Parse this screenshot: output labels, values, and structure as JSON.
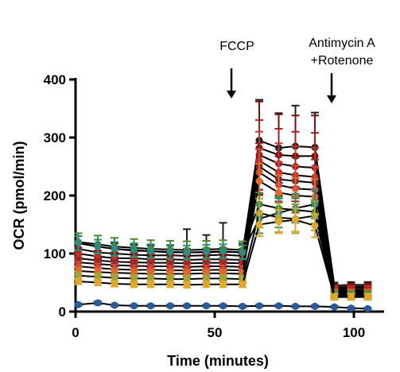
{
  "chart_data": {
    "type": "line",
    "title": "",
    "xlabel": "Time (minutes)",
    "ylabel": "OCR (pmol/min)",
    "xlim": [
      0,
      108
    ],
    "ylim": [
      0,
      400
    ],
    "xticks": [
      0,
      50,
      100
    ],
    "yticks": [
      0,
      100,
      200,
      300,
      400
    ],
    "grid": false,
    "legend": "none",
    "x": [
      1,
      8,
      14,
      21,
      27,
      34,
      40,
      47,
      53,
      60,
      66,
      73,
      79,
      86,
      93,
      99,
      105
    ],
    "annotations": [
      {
        "text": "FCCP",
        "x": 56
      },
      {
        "text": "Antimycin A +Rotenone",
        "x": 92
      }
    ],
    "series": [
      {
        "color": "#1f1f1f",
        "values": [
          118,
          112,
          108,
          105,
          104,
          102,
          102,
          102,
          103,
          102,
          295,
          282,
          285,
          283,
          45,
          46,
          46
        ],
        "errors": [
          12,
          12,
          10,
          10,
          10,
          12,
          40,
          30,
          50,
          15,
          70,
          60,
          70,
          60,
          5,
          5,
          5
        ]
      },
      {
        "color": "#7a1010",
        "values": [
          108,
          102,
          100,
          98,
          97,
          97,
          96,
          97,
          98,
          96,
          282,
          270,
          268,
          268,
          42,
          43,
          43
        ],
        "errors": [
          10,
          10,
          10,
          10,
          10,
          10,
          12,
          12,
          12,
          12,
          80,
          70,
          70,
          70,
          5,
          5,
          5
        ]
      },
      {
        "color": "#a51c1c",
        "values": [
          100,
          95,
          92,
          92,
          90,
          90,
          89,
          90,
          90,
          89,
          270,
          255,
          250,
          248,
          40,
          41,
          41
        ],
        "errors": [
          10,
          10,
          10,
          10,
          10,
          10,
          10,
          10,
          10,
          10,
          60,
          60,
          60,
          60,
          5,
          5,
          5
        ]
      },
      {
        "color": "#c43528",
        "values": [
          92,
          88,
          86,
          85,
          84,
          84,
          83,
          84,
          84,
          83,
          260,
          240,
          235,
          232,
          38,
          38,
          38
        ],
        "errors": [
          8,
          8,
          8,
          8,
          8,
          8,
          8,
          8,
          8,
          8,
          50,
          50,
          50,
          50,
          5,
          5,
          5
        ]
      },
      {
        "color": "#8b2a2a",
        "values": [
          85,
          82,
          80,
          79,
          78,
          78,
          77,
          78,
          78,
          77,
          250,
          228,
          225,
          222,
          36,
          36,
          36
        ],
        "errors": [
          8,
          8,
          8,
          8,
          8,
          8,
          8,
          8,
          8,
          8,
          40,
          40,
          40,
          40,
          5,
          5,
          5
        ]
      },
      {
        "color": "#d24a3a",
        "values": [
          78,
          75,
          73,
          72,
          72,
          71,
          71,
          72,
          72,
          71,
          240,
          218,
          212,
          210,
          34,
          34,
          34
        ],
        "errors": [
          8,
          8,
          8,
          8,
          8,
          8,
          8,
          8,
          8,
          8,
          40,
          40,
          40,
          40,
          5,
          5,
          5
        ]
      },
      {
        "color": "#e06a2a",
        "values": [
          70,
          68,
          67,
          66,
          65,
          65,
          65,
          66,
          66,
          65,
          225,
          205,
          200,
          198,
          32,
          32,
          32
        ],
        "errors": [
          6,
          6,
          6,
          6,
          6,
          6,
          6,
          6,
          6,
          6,
          30,
          30,
          30,
          30,
          5,
          5,
          5
        ]
      },
      {
        "color": "#4a8a2a",
        "values": [
          120,
          116,
          112,
          110,
          108,
          107,
          106,
          107,
          108,
          106,
          185,
          178,
          175,
          172,
          30,
          30,
          30
        ],
        "errors": [
          15,
          15,
          15,
          15,
          15,
          15,
          15,
          15,
          15,
          15,
          20,
          20,
          20,
          20,
          5,
          5,
          5
        ]
      },
      {
        "color": "#2e8b80",
        "values": [
          118,
          112,
          108,
          106,
          104,
          103,
          102,
          103,
          104,
          102,
          160,
          170,
          178,
          185,
          28,
          28,
          28
        ],
        "errors": [
          12,
          12,
          12,
          12,
          12,
          12,
          12,
          12,
          12,
          12,
          25,
          25,
          25,
          25,
          5,
          5,
          5
        ]
      },
      {
        "color": "#a0a23a",
        "values": [
          62,
          60,
          58,
          57,
          57,
          56,
          56,
          57,
          57,
          56,
          170,
          162,
          160,
          165,
          27,
          27,
          27
        ],
        "errors": [
          6,
          6,
          6,
          6,
          6,
          6,
          6,
          6,
          6,
          6,
          25,
          25,
          25,
          25,
          5,
          5,
          5
        ]
      },
      {
        "color": "#e0a82a",
        "values": [
          52,
          50,
          48,
          47,
          47,
          47,
          46,
          47,
          47,
          47,
          150,
          155,
          158,
          148,
          25,
          25,
          25
        ],
        "errors": [
          5,
          5,
          5,
          5,
          5,
          5,
          5,
          5,
          5,
          5,
          20,
          20,
          20,
          20,
          5,
          5,
          5
        ]
      },
      {
        "color": "#2a5a9a",
        "values": [
          12,
          15,
          11,
          10,
          10,
          10,
          10,
          10,
          10,
          9,
          10,
          10,
          9,
          9,
          8,
          6,
          5
        ],
        "errors": [
          2,
          3,
          2,
          2,
          2,
          2,
          2,
          2,
          2,
          2,
          2,
          2,
          2,
          2,
          2,
          2,
          2
        ]
      }
    ]
  }
}
